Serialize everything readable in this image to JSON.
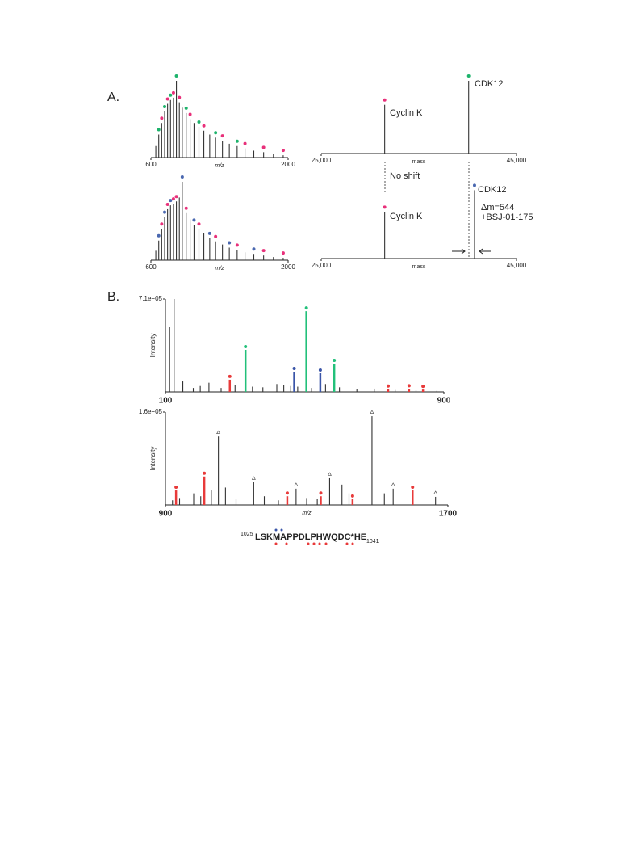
{
  "figure": {
    "labels": [
      "A.",
      "B."
    ],
    "sequence": {
      "start": "1025",
      "residues": "LSKMAPPDLPHWQDC*HE",
      "end": "1041"
    }
  },
  "chart_data": [
    {
      "type": "spectrum",
      "x_label": "m/z",
      "xlim": [
        600,
        2000
      ],
      "xticks": [
        600,
        2000
      ],
      "ylim": [
        0,
        100
      ],
      "series": [
        {
          "color": "#333333",
          "x": [
            650,
            680,
            710,
            740,
            770,
            800,
            830,
            860,
            890,
            920,
            960,
            1000,
            1040,
            1090,
            1140,
            1200,
            1260,
            1330,
            1400,
            1480,
            1560,
            1650,
            1750,
            1850,
            1950
          ],
          "values": [
            15,
            30,
            45,
            60,
            70,
            75,
            78,
            100,
            72,
            65,
            58,
            50,
            45,
            40,
            35,
            30,
            26,
            22,
            18,
            15,
            12,
            9,
            7,
            5,
            3
          ]
        }
      ],
      "markers": [
        {
          "shape": "dot",
          "color": "#1db36b",
          "x": [
            680,
            740,
            800,
            860,
            960,
            1090,
            1260,
            1480
          ],
          "values": [
            30,
            60,
            75,
            100,
            58,
            40,
            26,
            15
          ]
        },
        {
          "shape": "dot",
          "color": "#e8307a",
          "x": [
            710,
            770,
            830,
            890,
            1000,
            1140,
            1330,
            1560,
            1750,
            1950
          ],
          "values": [
            45,
            70,
            78,
            72,
            50,
            35,
            22,
            12,
            7,
            3
          ]
        }
      ]
    },
    {
      "type": "spectrum",
      "x_label": "mass",
      "xlim": [
        25000,
        45000
      ],
      "xticks": [
        {
          "value": 25000,
          "label": "25,000"
        },
        {
          "value": 45000,
          "label": "45,000"
        }
      ],
      "ylim": [
        0,
        100
      ],
      "series": [
        {
          "color": "#333333",
          "x": [
            31500,
            40100
          ],
          "values": [
            67,
            100
          ]
        }
      ],
      "markers": [
        {
          "shape": "dot",
          "color": "#e8307a",
          "x": [
            31500
          ],
          "values": [
            67
          ]
        },
        {
          "shape": "dot",
          "color": "#1db36b",
          "x": [
            40100
          ],
          "values": [
            100
          ]
        }
      ],
      "annotations": [
        "Cyclin K",
        "CDK12"
      ]
    },
    {
      "type": "spectrum",
      "x_label": "m/z",
      "xlim": [
        600,
        2000
      ],
      "xticks": [
        600,
        2000
      ],
      "ylim": [
        0,
        100
      ],
      "series": [
        {
          "color": "#333333",
          "x": [
            650,
            680,
            710,
            740,
            770,
            800,
            830,
            860,
            890,
            920,
            960,
            1000,
            1040,
            1090,
            1140,
            1200,
            1260,
            1330,
            1400,
            1480,
            1560,
            1650,
            1750,
            1850,
            1950
          ],
          "values": [
            12,
            25,
            40,
            55,
            65,
            70,
            72,
            75,
            80,
            100,
            60,
            52,
            45,
            40,
            34,
            28,
            24,
            20,
            16,
            13,
            10,
            8,
            6,
            4,
            3
          ]
        }
      ],
      "markers": [
        {
          "shape": "dot",
          "color": "#4a68b0",
          "x": [
            680,
            740,
            800,
            920,
            1040,
            1200,
            1400,
            1650
          ],
          "values": [
            25,
            55,
            70,
            100,
            45,
            28,
            16,
            8
          ]
        },
        {
          "shape": "dot",
          "color": "#e8307a",
          "x": [
            710,
            770,
            830,
            860,
            960,
            1090,
            1260,
            1480,
            1750,
            1950
          ],
          "values": [
            40,
            65,
            72,
            75,
            60,
            40,
            24,
            13,
            6,
            3
          ]
        }
      ]
    },
    {
      "type": "spectrum",
      "x_label": "mass",
      "xlim": [
        25000,
        45000
      ],
      "xticks": [
        {
          "value": 25000,
          "label": "25,000"
        },
        {
          "value": 45000,
          "label": "45,000"
        }
      ],
      "ylim": [
        0,
        100
      ],
      "series": [
        {
          "color": "#333333",
          "x": [
            31500,
            40700
          ],
          "values": [
            64,
            94
          ]
        }
      ],
      "markers": [
        {
          "shape": "dot",
          "color": "#e8307a",
          "x": [
            31500
          ],
          "values": [
            64
          ]
        },
        {
          "shape": "dot",
          "color": "#4a68b0",
          "x": [
            40700
          ],
          "values": [
            94
          ]
        }
      ],
      "annotations": [
        "No shift",
        "Cyclin K",
        "CDK12",
        "Δm=544",
        "+BSJ-01-175"
      ]
    },
    {
      "type": "spectrum",
      "y_label": "Intensity",
      "xlim": [
        100,
        900
      ],
      "xticks": [
        100,
        900
      ],
      "ylim": [
        0,
        710000
      ],
      "yticks": [
        {
          "value": 710000,
          "label": "7.1e+05"
        }
      ],
      "series": [
        {
          "color": "#333333",
          "x": [
            112,
            125,
            150,
            180,
            200,
            225,
            260,
            300,
            350,
            380,
            420,
            440,
            460,
            480,
            520,
            560,
            600,
            650,
            700,
            760,
            820,
            880
          ],
          "values": [
            494000,
            710000,
            80000,
            30000,
            45000,
            70000,
            30000,
            50000,
            40000,
            35000,
            60000,
            50000,
            45000,
            40000,
            30000,
            60000,
            35000,
            20000,
            25000,
            15000,
            12000,
            8000
          ]
        },
        {
          "color": "#22c07a",
          "marker": "dot",
          "x": [
            330,
            505,
            585
          ],
          "values": [
            321000,
            617000,
            216000
          ]
        },
        {
          "color": "#3a55a8",
          "marker": "dot",
          "x": [
            470,
            545
          ],
          "values": [
            154000,
            142000
          ]
        },
        {
          "color": "#e83a3a",
          "marker": "dot",
          "x": [
            285,
            740,
            800,
            840
          ],
          "values": [
            93000,
            20000,
            22000,
            18000
          ]
        }
      ]
    },
    {
      "type": "spectrum",
      "x_label": "m/z",
      "y_label": "Intensity",
      "xlim": [
        900,
        1700
      ],
      "xticks": [
        900,
        1700
      ],
      "ylim": [
        0,
        160000
      ],
      "yticks": [
        {
          "value": 160000,
          "label": "1.6e+05"
        }
      ],
      "series": [
        {
          "color": "#333333",
          "x": [
            920,
            940,
            980,
            1000,
            1030,
            1070,
            1100,
            1180,
            1220,
            1300,
            1330,
            1400,
            1420,
            1520,
            1600
          ],
          "values": [
            8000,
            12000,
            20000,
            15000,
            25000,
            30000,
            10000,
            15000,
            8000,
            12000,
            10000,
            35000,
            20000,
            20000,
            8000
          ]
        },
        {
          "color": "#333333",
          "marker": "triangle",
          "x": [
            1050,
            1150,
            1270,
            1365,
            1485,
            1545,
            1665
          ],
          "values": [
            118000,
            39000,
            28000,
            46000,
            153000,
            28000,
            14000
          ]
        },
        {
          "color": "#e83a3a",
          "marker": "dot",
          "x": [
            930,
            1010,
            1245,
            1340,
            1430,
            1600
          ],
          "values": [
            25000,
            49000,
            15000,
            15000,
            10000,
            25000
          ]
        }
      ]
    }
  ]
}
